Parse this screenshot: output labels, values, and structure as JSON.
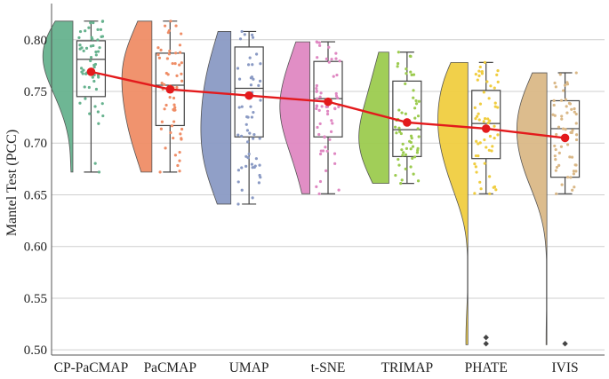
{
  "chart_data": {
    "type": "raincloud",
    "title": "",
    "xlabel": "",
    "ylabel": "Mantel Test (PCC)",
    "ylim": [
      0.495,
      0.835
    ],
    "yticks": [
      "0.50",
      "0.55",
      "0.60",
      "0.65",
      "0.70",
      "0.75",
      "0.80"
    ],
    "grid": "horizontal",
    "mean_line_color": "#e31a1c",
    "categories": [
      {
        "name": "CP-PaCMAP",
        "color": "#66b28e",
        "min": 0.672,
        "q1": 0.745,
        "median": 0.781,
        "q3": 0.799,
        "max": 0.818,
        "mean": 0.769,
        "outliers": []
      },
      {
        "name": "PaCMAP",
        "color": "#ef8d66",
        "min": 0.672,
        "q1": 0.717,
        "median": 0.756,
        "q3": 0.787,
        "max": 0.818,
        "mean": 0.752,
        "outliers": []
      },
      {
        "name": "UMAP",
        "color": "#8a9ac4",
        "min": 0.641,
        "q1": 0.706,
        "median": 0.753,
        "q3": 0.793,
        "max": 0.808,
        "mean": 0.746,
        "outliers": []
      },
      {
        "name": "t-SNE",
        "color": "#df88c2",
        "min": 0.651,
        "q1": 0.706,
        "median": 0.743,
        "q3": 0.779,
        "max": 0.798,
        "mean": 0.74,
        "outliers": []
      },
      {
        "name": "TRIMAP",
        "color": "#9ccb4f",
        "min": 0.661,
        "q1": 0.687,
        "median": 0.713,
        "q3": 0.76,
        "max": 0.788,
        "mean": 0.72,
        "outliers": []
      },
      {
        "name": "PHATE",
        "color": "#f0cd40",
        "min": 0.651,
        "q1": 0.685,
        "median": 0.719,
        "q3": 0.751,
        "max": 0.778,
        "mean": 0.714,
        "outliers": [
          0.512,
          0.506
        ]
      },
      {
        "name": "IVIS",
        "color": "#dab887",
        "min": 0.651,
        "q1": 0.667,
        "median": 0.714,
        "q3": 0.741,
        "max": 0.768,
        "mean": 0.705,
        "outliers": [
          0.506
        ]
      }
    ]
  }
}
